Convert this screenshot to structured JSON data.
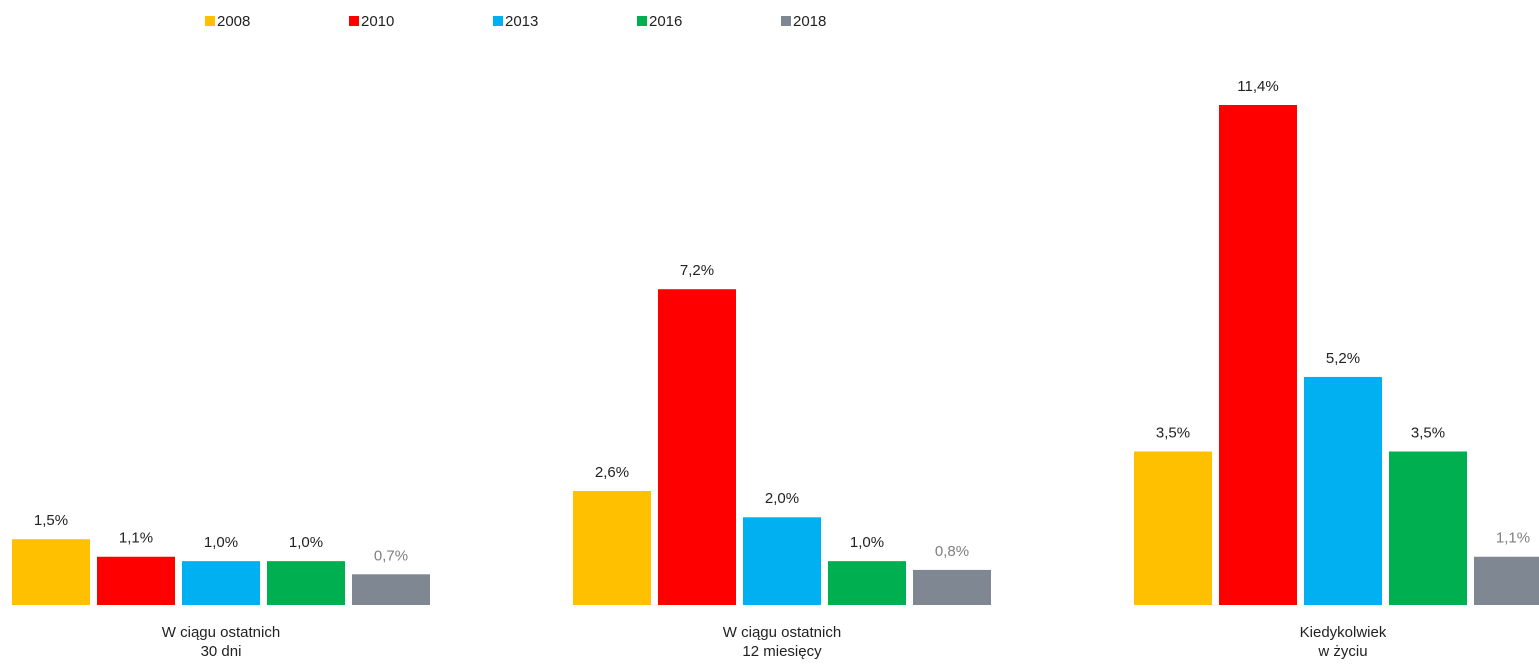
{
  "chart_data": {
    "type": "bar",
    "categories": [
      [
        "W ciągu ostatnich",
        "30 dni"
      ],
      [
        "W ciągu ostatnich",
        "12 miesięcy"
      ],
      [
        "Kiedykolwiek",
        "w życiu"
      ]
    ],
    "series": [
      {
        "name": "2008",
        "color": "#FFC000",
        "values": [
          1.5,
          2.6,
          3.5
        ],
        "value_labels": [
          "1,5%",
          "2,6%",
          "3,5%"
        ]
      },
      {
        "name": "2010",
        "color": "#FF0000",
        "values": [
          1.1,
          7.2,
          11.4
        ],
        "value_labels": [
          "1,1%",
          "7,2%",
          "11,4%"
        ]
      },
      {
        "name": "2013",
        "color": "#00B0F0",
        "values": [
          1.0,
          2.0,
          5.2
        ],
        "value_labels": [
          "1,0%",
          "2,0%",
          "5,2%"
        ]
      },
      {
        "name": "2016",
        "color": "#00B050",
        "values": [
          1.0,
          1.0,
          3.5
        ],
        "value_labels": [
          "1,0%",
          "1,0%",
          "3,5%"
        ]
      },
      {
        "name": "2018",
        "color": "#7F8793",
        "values": [
          0.7,
          0.8,
          1.1
        ],
        "value_labels": [
          "0,7%",
          "0,8%",
          "1,1%"
        ]
      }
    ],
    "legend": "top"
  }
}
